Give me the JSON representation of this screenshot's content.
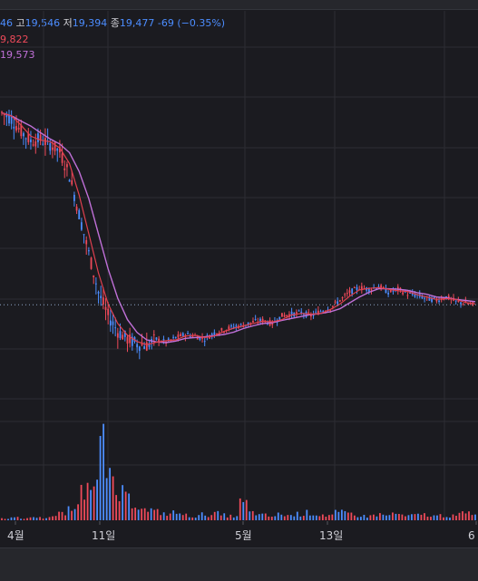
{
  "legend": {
    "open_value": "46",
    "high_label": "고",
    "high_value": "19,546",
    "low_label": "저",
    "low_value": "19,394",
    "close_label": "종",
    "close_value": "19,477",
    "change": "-69",
    "change_pct": "(−0.35%)",
    "ma1_value": "9,822",
    "ma2_value": "19,573"
  },
  "colors": {
    "up": "#ef4a5a",
    "down": "#4c8dff",
    "ma1": "#e0404f",
    "ma2": "#c070d8",
    "grid": "#2c2d33",
    "background": "#1b1b20"
  },
  "chart_data": {
    "type": "candlestick",
    "x_ticks": [
      "4월",
      "11일",
      "5월",
      "13일",
      "6"
    ],
    "price_series": [
      19600,
      19560,
      19480,
      19420,
      19430,
      19400,
      19350,
      19200,
      18950,
      18700,
      18450,
      18300,
      18200,
      18150,
      18120,
      18110,
      18150,
      18130,
      18160,
      18180,
      18170,
      18150,
      18190,
      18210,
      18230,
      18240,
      18260,
      18270,
      18250,
      18300,
      18310,
      18320,
      18300,
      18330,
      18350,
      18400,
      18450,
      18480,
      18470,
      18490,
      18450,
      18470,
      18440,
      18430,
      18410,
      18400,
      18420,
      18390,
      18380,
      18370
    ],
    "volume_series": [
      2,
      3,
      2,
      4,
      3,
      5,
      8,
      12,
      35,
      60,
      88,
      45,
      30,
      25,
      20,
      12,
      10,
      8,
      9,
      6,
      5,
      7,
      8,
      6,
      5,
      20,
      9,
      6,
      5,
      7,
      6,
      8,
      9,
      7,
      6,
      9,
      8,
      6,
      5,
      7,
      6,
      8,
      5,
      6,
      7,
      5,
      6,
      5,
      8,
      9
    ]
  }
}
